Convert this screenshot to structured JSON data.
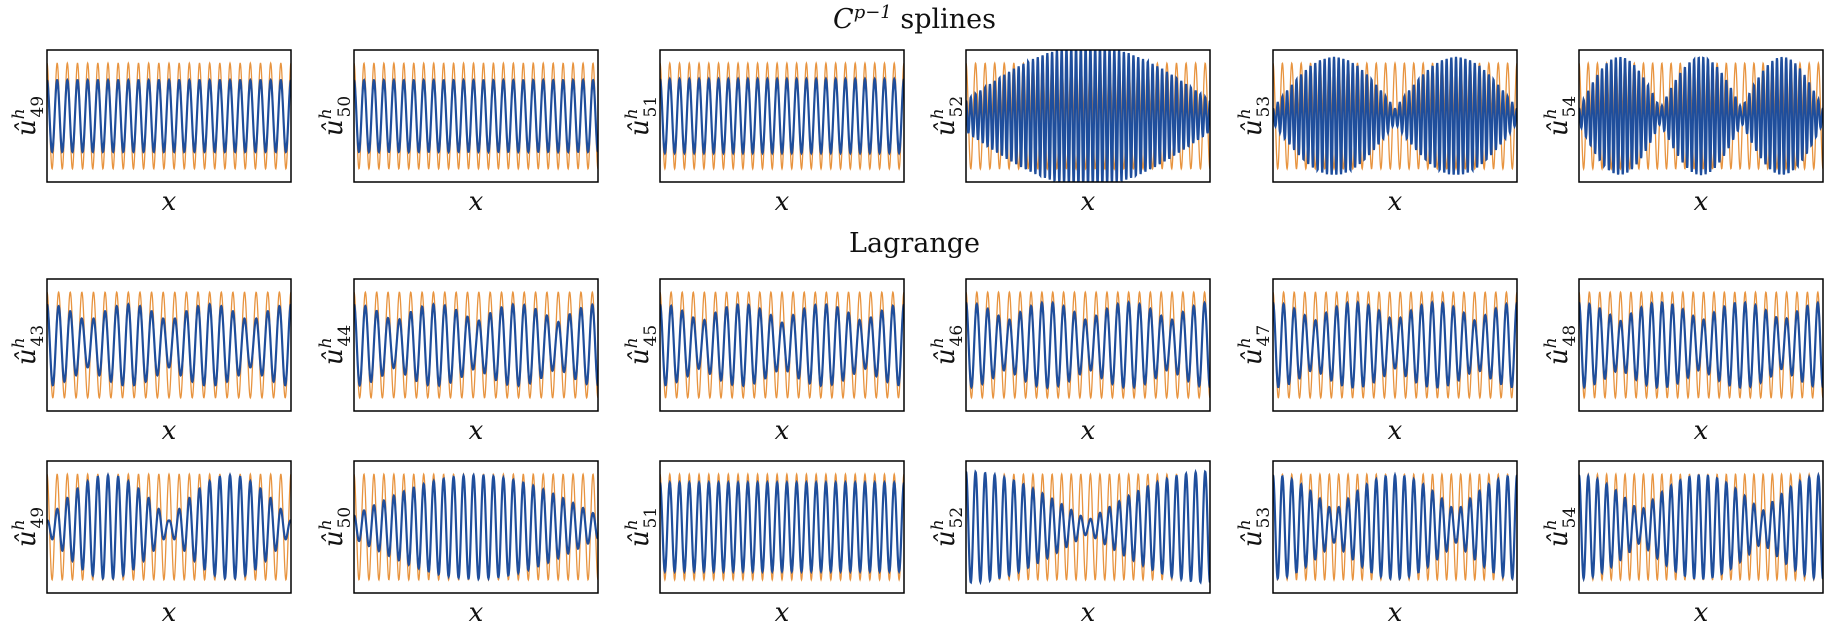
{
  "titles": {
    "splines_base": "C",
    "splines_sup": "p−1",
    "splines_rest": " splines",
    "lagrange": "Lagrange"
  },
  "colors": {
    "mode_curve": "#1f4e9c",
    "reference_curve": "#e8943f",
    "frame": "#000000"
  },
  "chart_data": [
    {
      "type": "line",
      "title": "C^{p-1} splines",
      "xlabel": "x",
      "grid": false,
      "panels": [
        {
          "ylabel_base": "û",
          "ylabel_sup": "h",
          "ylabel_sub": "49",
          "ref_freq": 24,
          "envelope": "constant",
          "mode_amp": 0.97,
          "mode_freq": 24
        },
        {
          "ylabel_base": "û",
          "ylabel_sup": "h",
          "ylabel_sub": "50",
          "ref_freq": 24.5,
          "envelope": "constant",
          "mode_amp": 0.97,
          "mode_freq": 24.5
        },
        {
          "ylabel_base": "û",
          "ylabel_sup": "h",
          "ylabel_sub": "51",
          "ref_freq": 25,
          "envelope": "constant",
          "mode_amp": 1.0,
          "mode_freq": 25
        },
        {
          "ylabel_base": "û",
          "ylabel_sup": "h",
          "ylabel_sub": "52",
          "ref_freq": 25.5,
          "envelope": "one_lobe",
          "mode_amp": 1.9,
          "mode_freq": 51
        },
        {
          "ylabel_base": "û",
          "ylabel_sup": "h",
          "ylabel_sub": "53",
          "ref_freq": 26,
          "envelope": "two_lobes",
          "mode_amp": 1.6,
          "mode_freq": 52
        },
        {
          "ylabel_base": "û",
          "ylabel_sup": "h",
          "ylabel_sub": "54",
          "ref_freq": 26.5,
          "envelope": "three_lobes",
          "mode_amp": 1.6,
          "mode_freq": 53
        }
      ]
    },
    {
      "type": "line",
      "title": "Lagrange",
      "xlabel": "x",
      "grid": false,
      "panels": [
        {
          "ylabel_base": "û",
          "ylabel_sup": "h",
          "ylabel_sub": "43",
          "ref_freq": 21,
          "envelope": "beat",
          "mode_amp": 1.1,
          "mode_freq": 21
        },
        {
          "ylabel_base": "û",
          "ylabel_sup": "h",
          "ylabel_sub": "44",
          "ref_freq": 21.5,
          "envelope": "beat",
          "mode_amp": 1.1,
          "mode_freq": 21.5
        },
        {
          "ylabel_base": "û",
          "ylabel_sup": "h",
          "ylabel_sub": "45",
          "ref_freq": 22,
          "envelope": "beat",
          "mode_amp": 1.1,
          "mode_freq": 22
        },
        {
          "ylabel_base": "û",
          "ylabel_sup": "h",
          "ylabel_sub": "46",
          "ref_freq": 22.5,
          "envelope": "beat",
          "mode_amp": 1.15,
          "mode_freq": 22.5
        },
        {
          "ylabel_base": "û",
          "ylabel_sup": "h",
          "ylabel_sub": "47",
          "ref_freq": 23,
          "envelope": "beat",
          "mode_amp": 1.15,
          "mode_freq": 23
        },
        {
          "ylabel_base": "û",
          "ylabel_sup": "h",
          "ylabel_sub": "48",
          "ref_freq": 23.5,
          "envelope": "beat",
          "mode_amp": 1.15,
          "mode_freq": 23.5
        }
      ]
    },
    {
      "type": "line",
      "title": "",
      "xlabel": "x",
      "grid": false,
      "panels": [
        {
          "ylabel_base": "û",
          "ylabel_sup": "h",
          "ylabel_sub": "49",
          "ref_freq": 24,
          "envelope": "two_lobes",
          "mode_amp": 1.4,
          "mode_freq": 24
        },
        {
          "ylabel_base": "û",
          "ylabel_sup": "h",
          "ylabel_sub": "50",
          "ref_freq": 24.5,
          "envelope": "one_lobe",
          "mode_amp": 1.4,
          "mode_freq": 24.5
        },
        {
          "ylabel_base": "û",
          "ylabel_sup": "h",
          "ylabel_sub": "51",
          "ref_freq": 25,
          "envelope": "constant",
          "mode_amp": 1.2,
          "mode_freq": 25
        },
        {
          "ylabel_base": "û",
          "ylabel_sup": "h",
          "ylabel_sub": "52",
          "ref_freq": 25.5,
          "envelope": "v_shape",
          "mode_amp": 1.5,
          "mode_freq": 25.5
        },
        {
          "ylabel_base": "û",
          "ylabel_sup": "h",
          "ylabel_sub": "53",
          "ref_freq": 26,
          "envelope": "w_shape",
          "mode_amp": 1.4,
          "mode_freq": 26
        },
        {
          "ylabel_base": "û",
          "ylabel_sup": "h",
          "ylabel_sub": "54",
          "ref_freq": 26.5,
          "envelope": "w_shape",
          "mode_amp": 1.4,
          "mode_freq": 26.5
        }
      ]
    }
  ]
}
